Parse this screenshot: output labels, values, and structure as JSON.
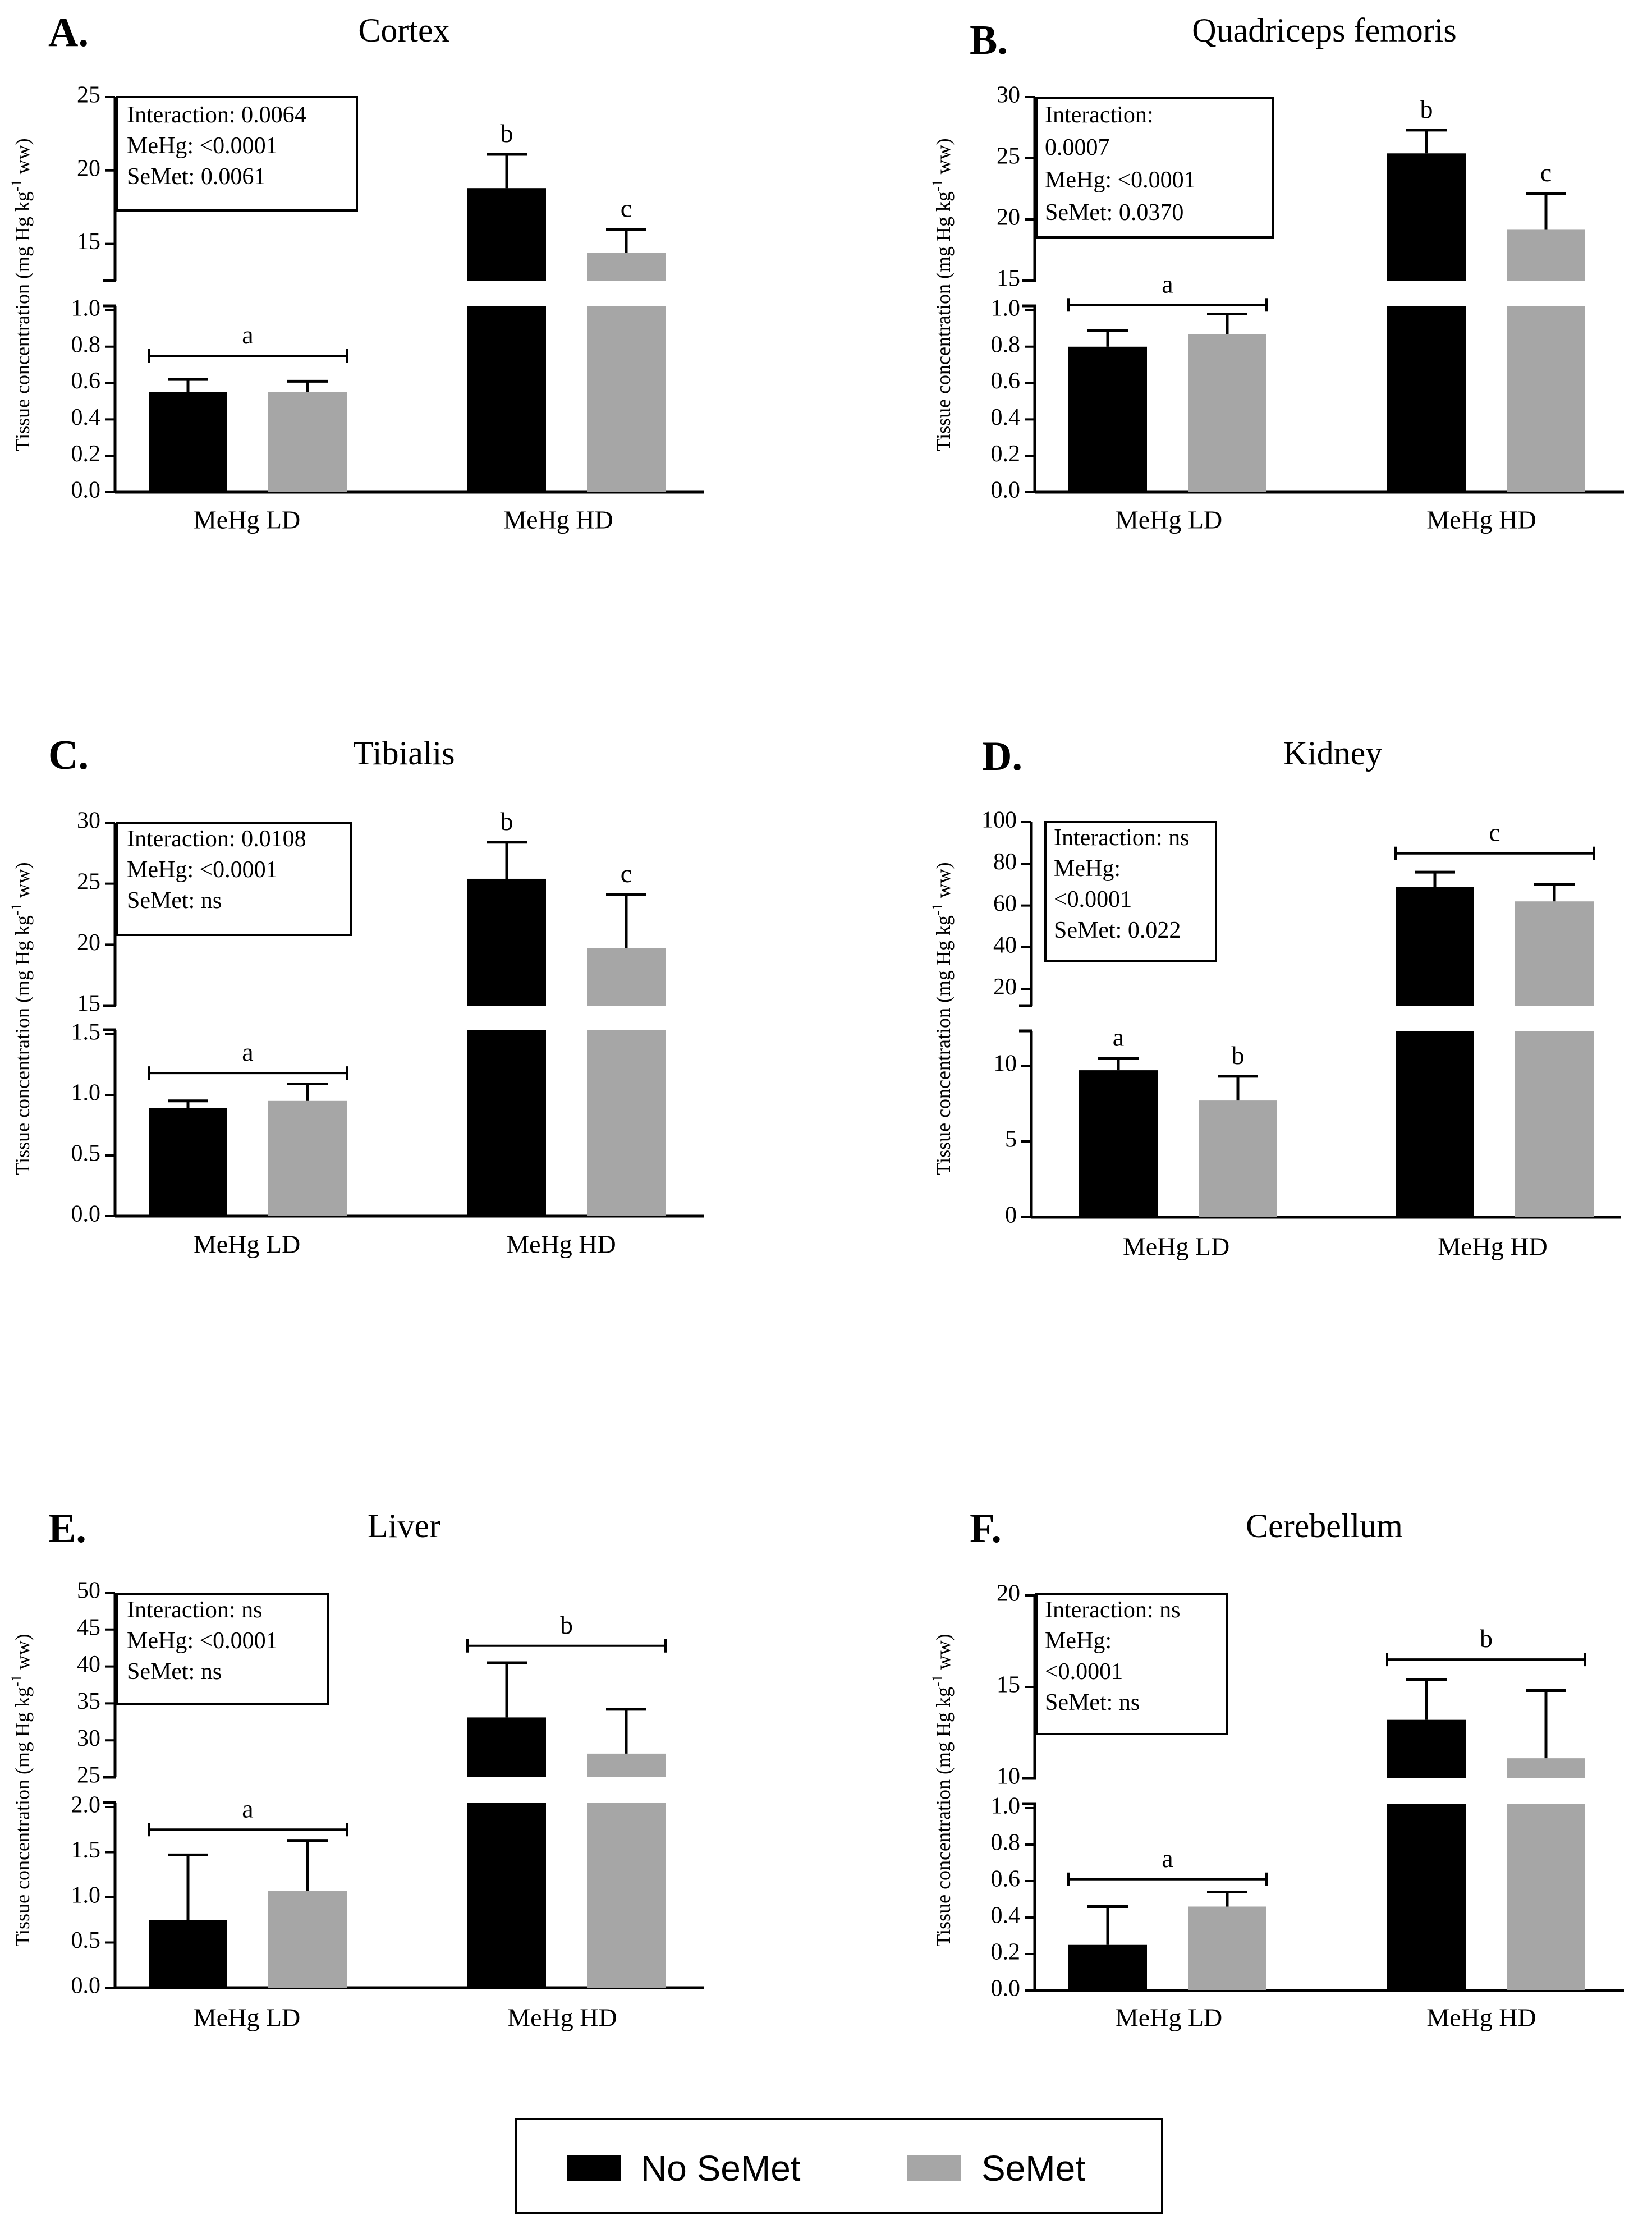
{
  "colors": {
    "no_semet": "#000000",
    "semet": "#a6a6a6",
    "axis": "#000000"
  },
  "legend": {
    "items": [
      {
        "label": "No SeMet",
        "color": "#000000"
      },
      {
        "label": "SeMet",
        "color": "#a6a6a6"
      }
    ]
  },
  "chart_data": [
    {
      "type": "bar",
      "panel": "A.",
      "title": "Cortex",
      "ylabel": "Tissue concentration (mg Hg kg-1 ww)",
      "categories": [
        "MeHg LD",
        "MeHg HD"
      ],
      "lower": {
        "ylim": [
          0,
          1.0
        ],
        "ticks": [
          "0.0",
          "0.2",
          "0.4",
          "0.6",
          "0.8",
          "1.0"
        ]
      },
      "upper": {
        "ylim": [
          12.5,
          25
        ],
        "ticks": [
          "15",
          "20",
          "25"
        ]
      },
      "series": [
        {
          "name": "No SeMet",
          "values": [
            0.55,
            18.8
          ],
          "errors": [
            0.07,
            2.3
          ]
        },
        {
          "name": "SeMet",
          "values": [
            0.55,
            14.4
          ],
          "errors": [
            0.06,
            1.6
          ]
        }
      ],
      "stats": [
        "Interaction: 0.0064",
        "MeHg: <0.0001",
        "SeMet: 0.0061"
      ],
      "letters": [
        {
          "text": "a",
          "group": "LD",
          "bracket": true,
          "value": 0.75,
          "seg": "lower"
        },
        {
          "text": "b",
          "bar": "HD-0",
          "seg": "upper"
        },
        {
          "text": "c",
          "bar": "HD-1",
          "seg": "upper"
        }
      ]
    },
    {
      "type": "bar",
      "panel": "B.",
      "title": "Quadriceps femoris",
      "ylabel": "Tissue concentration (mg Hg kg-1 ww)",
      "categories": [
        "MeHg LD",
        "MeHg HD"
      ],
      "lower": {
        "ylim": [
          0,
          1.0
        ],
        "ticks": [
          "0.0",
          "0.2",
          "0.4",
          "0.6",
          "0.8",
          "1.0"
        ]
      },
      "upper": {
        "ylim": [
          15,
          30
        ],
        "ticks": [
          "15",
          "20",
          "25",
          "30"
        ]
      },
      "series": [
        {
          "name": "No SeMet",
          "values": [
            0.8,
            25.4
          ],
          "errors": [
            0.09,
            1.9
          ]
        },
        {
          "name": "SeMet",
          "values": [
            0.87,
            19.2
          ],
          "errors": [
            0.11,
            2.9
          ]
        }
      ],
      "stats": [
        "Interaction:",
        "0.0007",
        "MeHg: <0.0001",
        "SeMet: 0.0370"
      ],
      "letters": [
        {
          "text": "a",
          "group": "LD",
          "bracket": true,
          "value": 1.03,
          "seg": "lower"
        },
        {
          "text": "b",
          "bar": "HD-0",
          "seg": "upper"
        },
        {
          "text": "c",
          "bar": "HD-1",
          "seg": "upper"
        }
      ]
    },
    {
      "type": "bar",
      "panel": "C.",
      "title": "Tibialis",
      "ylabel": "Tissue concentration (mg Hg kg-1 ww)",
      "categories": [
        "MeHg LD",
        "MeHg HD"
      ],
      "lower": {
        "ylim": [
          0,
          1.5
        ],
        "ticks": [
          "0.0",
          "0.5",
          "1.0",
          "1.5"
        ]
      },
      "upper": {
        "ylim": [
          15,
          30
        ],
        "ticks": [
          "15",
          "20",
          "25",
          "30"
        ]
      },
      "series": [
        {
          "name": "No SeMet",
          "values": [
            0.89,
            25.4
          ],
          "errors": [
            0.06,
            3.0
          ]
        },
        {
          "name": "SeMet",
          "values": [
            0.95,
            19.7
          ],
          "errors": [
            0.14,
            4.4
          ]
        }
      ],
      "stats": [
        "Interaction: 0.0108",
        "MeHg:  <0.0001",
        "SeMet: ns"
      ],
      "letters": [
        {
          "text": "a",
          "group": "LD",
          "bracket": true,
          "value": 1.18,
          "seg": "lower"
        },
        {
          "text": "b",
          "bar": "HD-0",
          "seg": "upper"
        },
        {
          "text": "c",
          "bar": "HD-1",
          "seg": "upper"
        }
      ]
    },
    {
      "type": "bar",
      "panel": "D.",
      "title": "Kidney",
      "ylabel": "Tissue concentration (mg Hg kg-1 ww)",
      "categories": [
        "MeHg LD",
        "MeHg HD"
      ],
      "lower": {
        "ylim": [
          0,
          12
        ],
        "ticks": [
          "0",
          "5",
          "10"
        ]
      },
      "upper": {
        "ylim": [
          12,
          100
        ],
        "ticks": [
          "20",
          "40",
          "60",
          "80",
          "100"
        ]
      },
      "series": [
        {
          "name": "No SeMet",
          "values": [
            9.7,
            69
          ],
          "errors": [
            0.8,
            7
          ]
        },
        {
          "name": "SeMet",
          "values": [
            7.7,
            62
          ],
          "errors": [
            1.6,
            8
          ]
        }
      ],
      "stats": [
        "Interaction: ns",
        "MeHg:",
        "<0.0001",
        "SeMet: 0.022"
      ],
      "letters": [
        {
          "text": "a",
          "bar": "LD-0",
          "seg": "lower"
        },
        {
          "text": "b",
          "bar": "LD-1",
          "seg": "lower"
        },
        {
          "text": "c",
          "group": "HD",
          "bracket": true,
          "value": 85,
          "seg": "upper"
        }
      ]
    },
    {
      "type": "bar",
      "panel": "E.",
      "title": "Liver",
      "ylabel": "Tissue concentration (mg Hg kg-1 ww)",
      "categories": [
        "MeHg LD",
        "MeHg HD"
      ],
      "lower": {
        "ylim": [
          0,
          2.0
        ],
        "ticks": [
          "0.0",
          "0.5",
          "1.0",
          "1.5",
          "2.0"
        ]
      },
      "upper": {
        "ylim": [
          25,
          50
        ],
        "ticks": [
          "25",
          "30",
          "35",
          "40",
          "45",
          "50"
        ]
      },
      "series": [
        {
          "name": "No SeMet",
          "values": [
            0.75,
            33.1
          ],
          "errors": [
            0.72,
            7.4
          ]
        },
        {
          "name": "SeMet",
          "values": [
            1.07,
            28.2
          ],
          "errors": [
            0.56,
            6.0
          ]
        }
      ],
      "stats": [
        "Interaction: ns",
        "MeHg: <0.0001",
        "SeMet: ns"
      ],
      "letters": [
        {
          "text": "a",
          "group": "LD",
          "bracket": true,
          "value": 1.75,
          "seg": "lower"
        },
        {
          "text": "b",
          "group": "HD",
          "bracket": true,
          "value": 42.8,
          "seg": "upper"
        }
      ]
    },
    {
      "type": "bar",
      "panel": "F.",
      "title": "Cerebellum",
      "ylabel": "Tissue concentration (mg Hg kg-1 ww)",
      "categories": [
        "MeHg LD",
        "MeHg HD"
      ],
      "lower": {
        "ylim": [
          0,
          1.0
        ],
        "ticks": [
          "0.0",
          "0.2",
          "0.4",
          "0.6",
          "0.8",
          "1.0"
        ]
      },
      "upper": {
        "ylim": [
          10,
          20
        ],
        "ticks": [
          "10",
          "15",
          "20"
        ]
      },
      "series": [
        {
          "name": "No SeMet",
          "values": [
            0.25,
            13.2
          ],
          "errors": [
            0.21,
            2.2
          ]
        },
        {
          "name": "SeMet",
          "values": [
            0.46,
            11.1
          ],
          "errors": [
            0.08,
            3.7
          ]
        }
      ],
      "stats": [
        "Interaction: ns",
        "MeHg:",
        "<0.0001",
        "SeMet: ns"
      ],
      "letters": [
        {
          "text": "a",
          "group": "LD",
          "bracket": true,
          "value": 0.61,
          "seg": "lower"
        },
        {
          "text": "b",
          "group": "HD",
          "bracket": true,
          "value": 16.5,
          "seg": "upper"
        }
      ]
    }
  ]
}
